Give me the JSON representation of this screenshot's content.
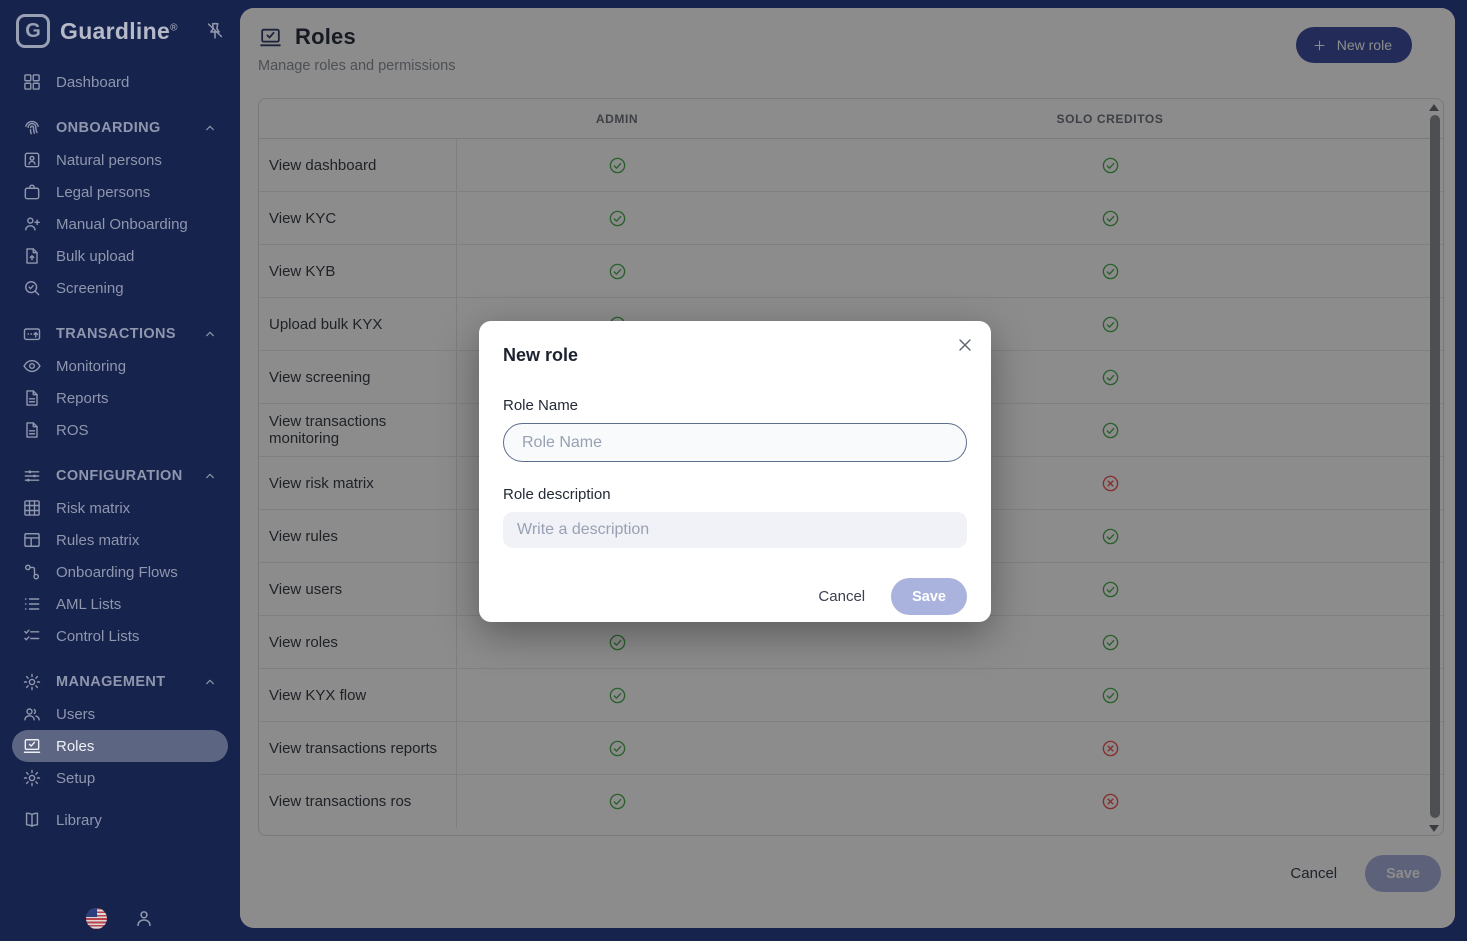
{
  "app": {
    "logo_mark": "G",
    "logo_text": "Guardline",
    "registered": "®"
  },
  "colors": {
    "sidebar_bg": "#16234d",
    "primary_navy": "#4050a0",
    "save_disabled": "#a9b3de",
    "success_green": "#4caf50",
    "danger_red": "#ef5350"
  },
  "sidebar": {
    "nav": [
      {
        "type": "item",
        "label": "Dashboard",
        "icon": "dashboard-icon"
      },
      {
        "type": "section",
        "label": "ONBOARDING",
        "icon": "fingerprint-icon"
      },
      {
        "type": "item",
        "label": "Natural persons",
        "icon": "id-card-icon"
      },
      {
        "type": "item",
        "label": "Legal persons",
        "icon": "briefcase-icon"
      },
      {
        "type": "item",
        "label": "Manual Onboarding",
        "icon": "person-add-icon"
      },
      {
        "type": "item",
        "label": "Bulk upload",
        "icon": "file-upload-icon"
      },
      {
        "type": "item",
        "label": "Screening",
        "icon": "search-check-icon"
      },
      {
        "type": "section",
        "label": "TRANSACTIONS",
        "icon": "card-send-icon"
      },
      {
        "type": "item",
        "label": "Monitoring",
        "icon": "eye-icon"
      },
      {
        "type": "item",
        "label": "Reports",
        "icon": "document-icon"
      },
      {
        "type": "item",
        "label": "ROS",
        "icon": "document-icon"
      },
      {
        "type": "section",
        "label": "CONFIGURATION",
        "icon": "sliders-icon"
      },
      {
        "type": "item",
        "label": "Risk matrix",
        "icon": "grid-table-icon"
      },
      {
        "type": "item",
        "label": "Rules matrix",
        "icon": "table-icon"
      },
      {
        "type": "item",
        "label": "Onboarding Flows",
        "icon": "flow-icon"
      },
      {
        "type": "item",
        "label": "AML Lists",
        "icon": "list-icon"
      },
      {
        "type": "item",
        "label": "Control Lists",
        "icon": "checklist-icon"
      },
      {
        "type": "section",
        "label": "MANAGEMENT",
        "icon": "gear-icon"
      },
      {
        "type": "item",
        "label": "Users",
        "icon": "people-icon"
      },
      {
        "type": "item",
        "label": "Roles",
        "icon": "roles-icon",
        "selected": true
      },
      {
        "type": "item",
        "label": "Setup",
        "icon": "gear-icon"
      },
      {
        "type": "gap"
      },
      {
        "type": "item",
        "label": "Library",
        "icon": "book-icon"
      }
    ]
  },
  "page": {
    "title": "Roles",
    "subtitle": "Manage roles and permissions",
    "new_role_label": "New role"
  },
  "table": {
    "columns": [
      "ADMIN",
      "SOLO CREDITOS"
    ],
    "rows": [
      {
        "permission": "View dashboard",
        "admin": "allowed",
        "solo_creditos": "allowed"
      },
      {
        "permission": "View KYC",
        "admin": "allowed",
        "solo_creditos": "allowed"
      },
      {
        "permission": "View KYB",
        "admin": "allowed",
        "solo_creditos": "allowed"
      },
      {
        "permission": "Upload bulk KYX",
        "admin": "allowed",
        "solo_creditos": "allowed"
      },
      {
        "permission": "View screening",
        "admin": "allowed",
        "solo_creditos": "allowed"
      },
      {
        "permission": "View transactions monitoring",
        "admin": "allowed",
        "solo_creditos": "allowed"
      },
      {
        "permission": "View risk matrix",
        "admin": "allowed",
        "solo_creditos": "denied"
      },
      {
        "permission": "View rules",
        "admin": "allowed",
        "solo_creditos": "allowed"
      },
      {
        "permission": "View users",
        "admin": "allowed",
        "solo_creditos": "allowed"
      },
      {
        "permission": "View roles",
        "admin": "allowed",
        "solo_creditos": "allowed"
      },
      {
        "permission": "View KYX flow",
        "admin": "allowed",
        "solo_creditos": "allowed"
      },
      {
        "permission": "View transactions reports",
        "admin": "allowed",
        "solo_creditos": "denied"
      },
      {
        "permission": "View transactions ros",
        "admin": "allowed",
        "solo_creditos": "denied"
      }
    ]
  },
  "footer": {
    "cancel_label": "Cancel",
    "save_label": "Save"
  },
  "modal": {
    "title": "New role",
    "name_label": "Role Name",
    "name_placeholder": "Role Name",
    "desc_label": "Role description",
    "desc_placeholder": "Write a description",
    "cancel_label": "Cancel",
    "save_label": "Save"
  }
}
